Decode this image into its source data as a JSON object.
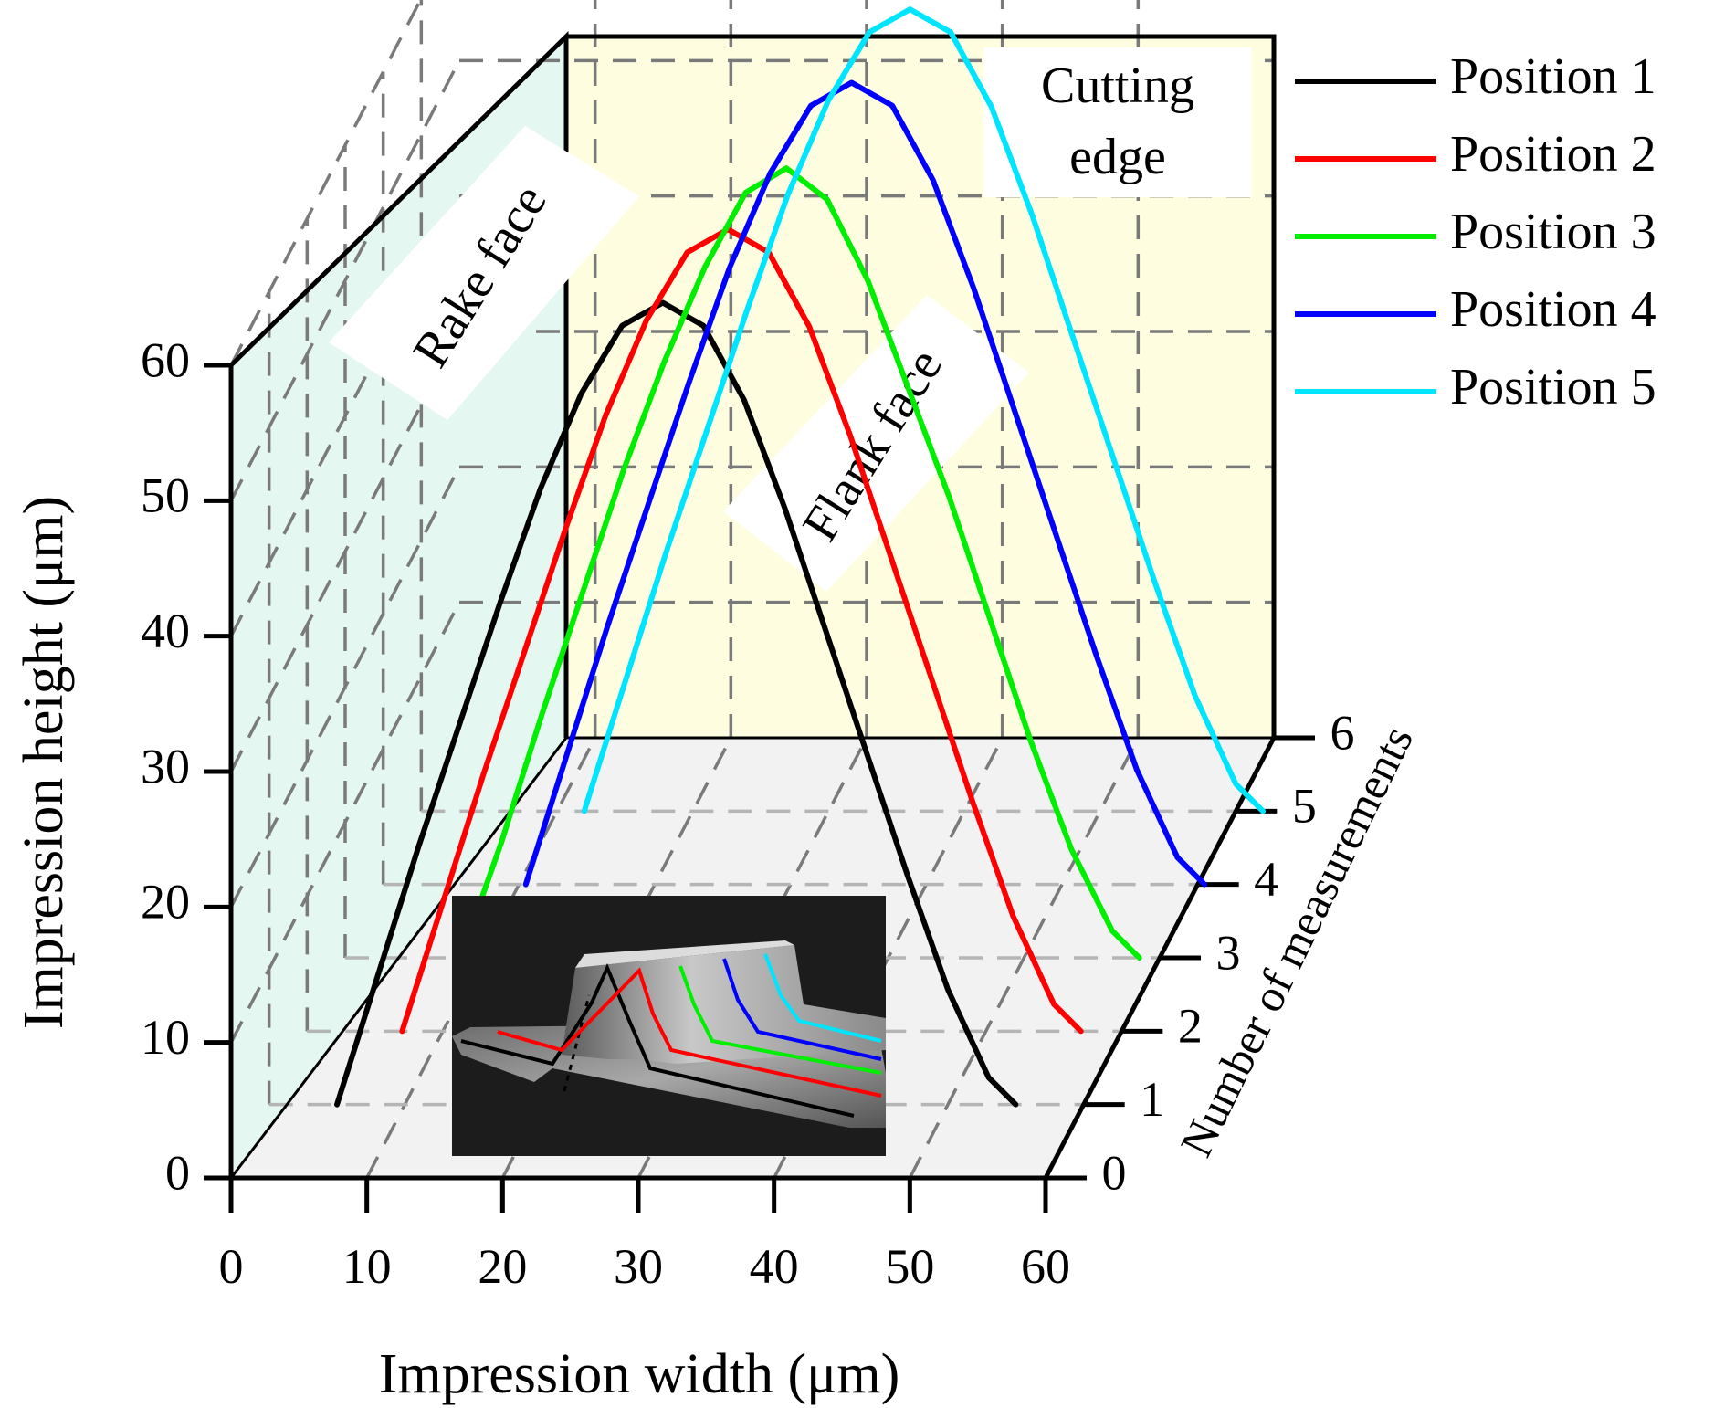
{
  "chart_data": {
    "type": "line",
    "subtype": "3d-waterfall",
    "x": [
      5,
      8,
      11,
      14,
      17,
      20,
      23,
      26,
      29,
      32,
      35,
      38,
      41,
      44,
      47,
      50,
      53,
      55
    ],
    "series": [
      {
        "name": "Position 1",
        "color": "#000000",
        "z": 1,
        "x_shift": 0,
        "values": [
          0,
          9.5,
          19,
          28,
          37,
          45.5,
          52.5,
          57.5,
          59.2,
          57.5,
          52,
          44,
          35,
          26,
          17,
          8.5,
          2,
          0
        ]
      },
      {
        "name": "Position 2",
        "color": "#ff0000",
        "z": 2,
        "x_shift": 2,
        "values": [
          0,
          9.5,
          19,
          28,
          37,
          45.5,
          52.5,
          57.5,
          59.2,
          57.5,
          52,
          44,
          35,
          26,
          17,
          8.5,
          2,
          0
        ]
      },
      {
        "name": "Position 3",
        "color": "#00ee00",
        "z": 3,
        "x_shift": 3.5,
        "values": [
          0,
          8.5,
          18,
          27,
          36,
          44,
          51,
          56.5,
          58.3,
          56,
          50,
          42,
          34,
          25,
          16,
          8,
          2,
          0
        ]
      },
      {
        "name": "Position 4",
        "color": "#0000ff",
        "z": 4,
        "x_shift": 5.5,
        "values": [
          0,
          9.5,
          19,
          28,
          37,
          45.5,
          52.5,
          57.5,
          59.2,
          57.5,
          52,
          44,
          35,
          26,
          17,
          8.5,
          2,
          0
        ]
      },
      {
        "name": "Position 5",
        "color": "#00e5ff",
        "z": 5,
        "x_shift": 7,
        "values": [
          0,
          9.5,
          19,
          28,
          37,
          45.5,
          52.5,
          57.5,
          59.2,
          57.5,
          52,
          44,
          35,
          26,
          17,
          8.5,
          2,
          0
        ]
      }
    ],
    "xlabel": "Impression width (μm)",
    "ylabel": "Impression height (μm)",
    "zlabel": "Number of measurements",
    "xlim": [
      0,
      60
    ],
    "ylim": [
      0,
      60
    ],
    "zlim": [
      0,
      6
    ],
    "xticks": [
      "0",
      "10",
      "20",
      "30",
      "40",
      "50",
      "60"
    ],
    "yticks": [
      "0",
      "10",
      "20",
      "30",
      "40",
      "50",
      "60"
    ],
    "zticks": [
      "0",
      "1",
      "2",
      "3",
      "4",
      "5",
      "6"
    ],
    "annotations": {
      "rake_face": "Rake face",
      "flank_face": "Flank face",
      "cutting_edge_line1": "Cutting",
      "cutting_edge_line2": "edge"
    },
    "legend_position": "top-right",
    "grid": true
  }
}
